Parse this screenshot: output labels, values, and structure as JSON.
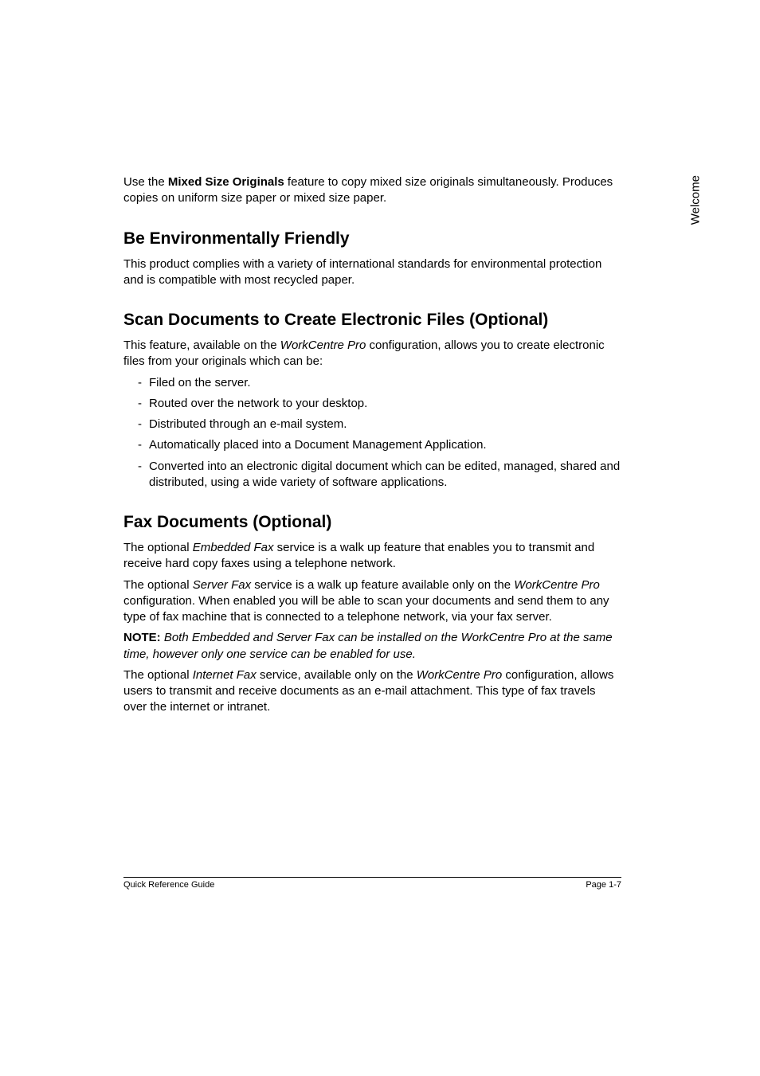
{
  "sideLabel": "Welcome",
  "intro": {
    "prefix": "Use the ",
    "bold": "Mixed Size Originals",
    "suffix": " feature to copy mixed size originals simultaneously. Produces copies on uniform size paper or mixed size paper."
  },
  "sections": {
    "env": {
      "heading": "Be Environmentally Friendly",
      "body": "This product complies with a variety of international standards for environmental protection and is compatible with most recycled paper."
    },
    "scan": {
      "heading": "Scan Documents to Create Electronic Files (Optional)",
      "descPrefix": "This feature, available on the ",
      "descItalic": "WorkCentre Pro",
      "descSuffix": " configuration, allows you to create electronic files from your originals which can be:",
      "items": [
        "Filed on the server.",
        "Routed over the network to your desktop.",
        "Distributed through an e-mail system.",
        "Automatically placed into a Document Management Application.",
        "Converted into an electronic digital document which can be edited, managed, shared and distributed, using a wide variety of software applications."
      ]
    },
    "fax": {
      "heading": "Fax Documents (Optional)",
      "p1a": "The optional ",
      "p1i": "Embedded Fax",
      "p1b": " service is a walk up feature that enables you to transmit and receive hard copy faxes using a telephone network.",
      "p2a": "The optional ",
      "p2i1": "Server Fax",
      "p2b": " service is a walk up feature available only on the ",
      "p2i2": "WorkCentre Pro",
      "p2c": " configuration. When enabled you will be able to scan your documents and send them to any type of fax machine that is connected to a telephone network, via your fax server.",
      "noteLabel": "NOTE:",
      "noteItalic": " Both Embedded and Server Fax can be installed on the WorkCentre Pro at the same time, however only one service can be enabled for use.",
      "p3a": "The optional ",
      "p3i1": "Internet Fax",
      "p3b": " service, available only on the ",
      "p3i2": "WorkCentre Pro",
      "p3c": " configuration, allows users to transmit and receive documents as an e-mail attachment. This type of fax travels over the internet or intranet."
    }
  },
  "footer": {
    "left": "Quick Reference Guide",
    "right": "Page 1-7"
  }
}
